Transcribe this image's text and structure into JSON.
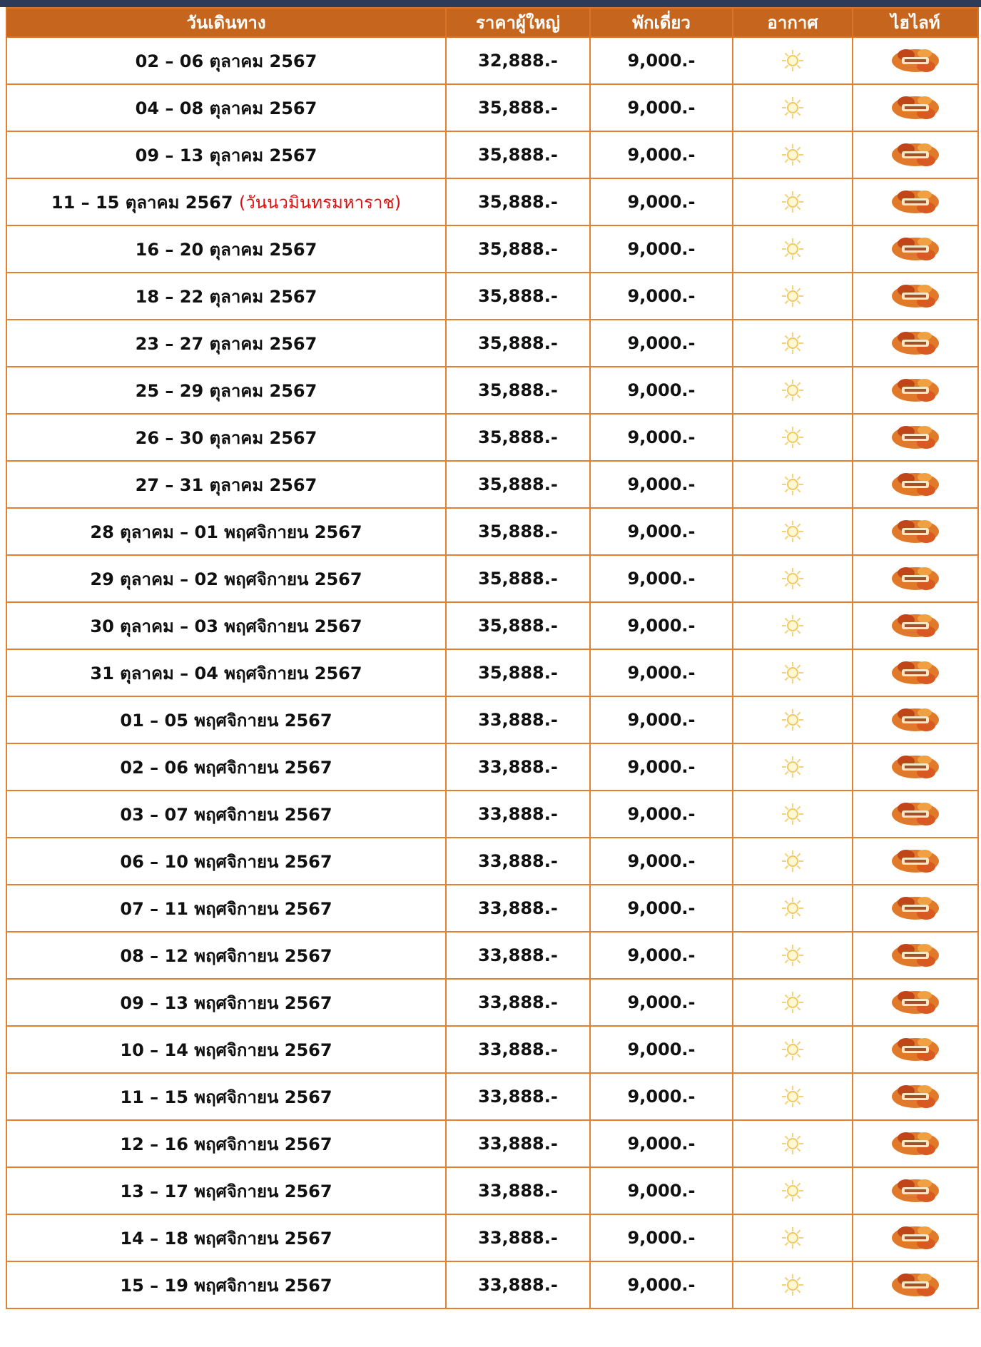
{
  "table": {
    "header": [
      "วันเดินทาง",
      "ราคาผู้ใหญ่",
      "พักเดี่ยว",
      "อากาศ",
      "ไฮไลท์"
    ],
    "rows": [
      {
        "date": "02 – 06 ตุลาคม 2567",
        "price": "32,888.-",
        "single": "9,000.-"
      },
      {
        "date": "04 – 08 ตุลาคม 2567",
        "price": "35,888.-",
        "single": "9,000.-"
      },
      {
        "date": "09 – 13 ตุลาคม 2567",
        "price": "35,888.-",
        "single": "9,000.-"
      },
      {
        "date": "11 – 15 ตุลาคม 2567",
        "note": "(วันนวมินทรมหาราช)",
        "price": "35,888.-",
        "single": "9,000.-"
      },
      {
        "date": "16 – 20 ตุลาคม 2567",
        "price": "35,888.-",
        "single": "9,000.-"
      },
      {
        "date": "18 – 22 ตุลาคม 2567",
        "price": "35,888.-",
        "single": "9,000.-"
      },
      {
        "date": "23 – 27 ตุลาคม 2567",
        "price": "35,888.-",
        "single": "9,000.-"
      },
      {
        "date": "25 – 29 ตุลาคม 2567",
        "price": "35,888.-",
        "single": "9,000.-"
      },
      {
        "date": "26 – 30 ตุลาคม 2567",
        "price": "35,888.-",
        "single": "9,000.-"
      },
      {
        "date": "27 – 31 ตุลาคม 2567",
        "price": "35,888.-",
        "single": "9,000.-"
      },
      {
        "date": "28 ตุลาคม – 01 พฤศจิกายน 2567",
        "price": "35,888.-",
        "single": "9,000.-"
      },
      {
        "date": "29 ตุลาคม – 02 พฤศจิกายน 2567",
        "price": "35,888.-",
        "single": "9,000.-"
      },
      {
        "date": "30 ตุลาคม – 03 พฤศจิกายน 2567",
        "price": "35,888.-",
        "single": "9,000.-"
      },
      {
        "date": "31 ตุลาคม – 04 พฤศจิกายน 2567",
        "price": "35,888.-",
        "single": "9,000.-"
      },
      {
        "date": "01 – 05 พฤศจิกายน 2567",
        "price": "33,888.-",
        "single": "9,000.-"
      },
      {
        "date": "02 – 06 พฤศจิกายน 2567",
        "price": "33,888.-",
        "single": "9,000.-"
      },
      {
        "date": "03 – 07 พฤศจิกายน 2567",
        "price": "33,888.-",
        "single": "9,000.-"
      },
      {
        "date": "06 – 10 พฤศจิกายน 2567",
        "price": "33,888.-",
        "single": "9,000.-"
      },
      {
        "date": "07 – 11 พฤศจิกายน 2567",
        "price": "33,888.-",
        "single": "9,000.-"
      },
      {
        "date": "08 – 12 พฤศจิกายน 2567",
        "price": "33,888.-",
        "single": "9,000.-"
      },
      {
        "date": "09 – 13 พฤศจิกายน 2567",
        "price": "33,888.-",
        "single": "9,000.-"
      },
      {
        "date": "10 – 14 พฤศจิกายน 2567",
        "price": "33,888.-",
        "single": "9,000.-"
      },
      {
        "date": "11 – 15 พฤศจิกายน 2567",
        "price": "33,888.-",
        "single": "9,000.-"
      },
      {
        "date": "12 – 16 พฤศจิกายน 2567",
        "price": "33,888.-",
        "single": "9,000.-"
      },
      {
        "date": "13 – 17 พฤศจิกายน 2567",
        "price": "33,888.-",
        "single": "9,000.-"
      },
      {
        "date": "14 – 18 พฤศจิกายน 2567",
        "price": "33,888.-",
        "single": "9,000.-"
      },
      {
        "date": "15 – 19 พฤศจิกายน 2567",
        "price": "33,888.-",
        "single": "9,000.-"
      }
    ]
  }
}
